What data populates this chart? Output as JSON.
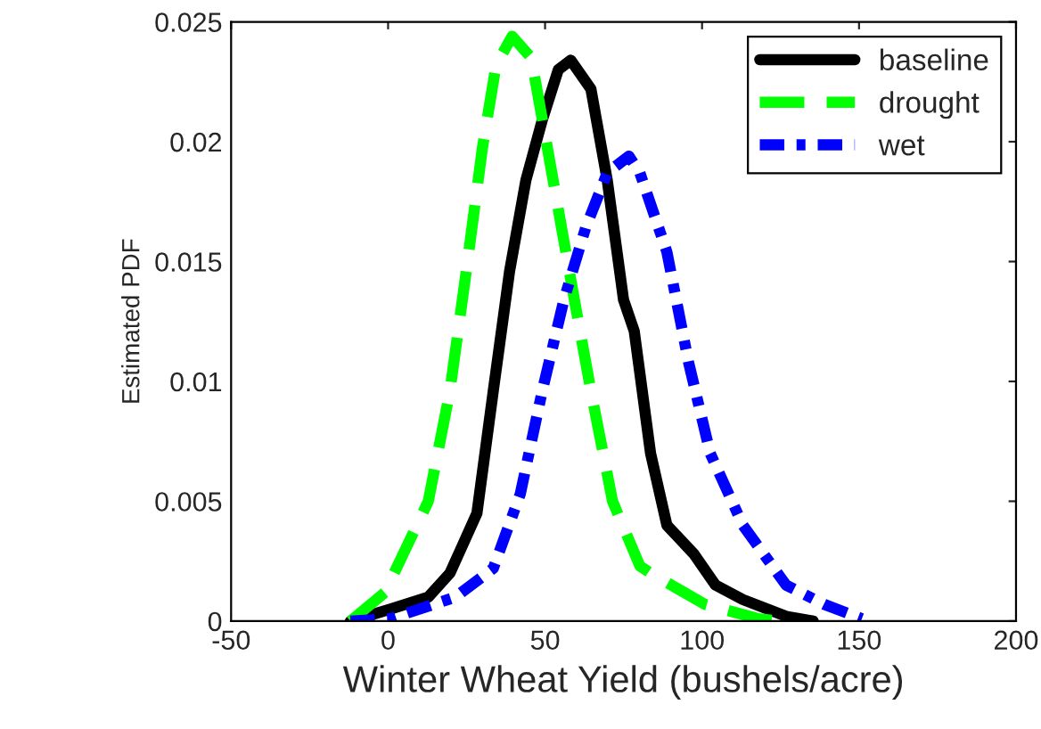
{
  "chart_data": {
    "type": "line",
    "xlabel": "Winter Wheat Yield (bushels/acre)",
    "ylabel": "Estimated PDF",
    "xlim": [
      -50,
      200
    ],
    "xticks": [
      -50,
      0,
      50,
      100,
      150,
      200
    ],
    "ylim": [
      0,
      0.025
    ],
    "yticks": [
      0,
      0.005,
      0.01,
      0.015,
      0.02,
      0.025
    ],
    "grid": false,
    "legend": "top right",
    "series": [
      {
        "name": "baseline",
        "color": "#000000",
        "line_style": "solid",
        "x": [
          -12,
          0.7,
          12.8,
          19.7,
          28.3,
          33.5,
          38.7,
          43.9,
          49.1,
          54.2,
          58.2,
          64.6,
          69.8,
          75,
          78.4,
          83.6,
          88.8,
          97.4,
          104.3,
          113,
          126.8,
          135.4
        ],
        "values": [
          0,
          0.0005,
          0.001,
          0.002,
          0.0045,
          0.0096,
          0.0146,
          0.0184,
          0.0209,
          0.023,
          0.0234,
          0.0222,
          0.0184,
          0.0134,
          0.0121,
          0.007,
          0.004,
          0.0028,
          0.0015,
          0.0009,
          0.0002,
          0
        ]
      },
      {
        "name": "drought",
        "color": "#00ff00",
        "line_style": "dashed",
        "x": [
          -12,
          -1,
          12.8,
          19.7,
          24.9,
          30,
          34.4,
          39.5,
          45.6,
          50.8,
          57.7,
          64.6,
          71.5,
          80.2,
          83.6,
          100.9,
          118,
          125
        ],
        "values": [
          0,
          0.0012,
          0.005,
          0.0096,
          0.0146,
          0.0197,
          0.0232,
          0.0244,
          0.0235,
          0.0197,
          0.0146,
          0.0096,
          0.005,
          0.0023,
          0.002,
          0.0007,
          0.0001,
          0
        ]
      },
      {
        "name": "wet",
        "color": "#0000ff",
        "line_style": "dashdot",
        "x": [
          -12,
          0.7,
          21.4,
          33.5,
          42.1,
          49.1,
          56,
          62.9,
          69.8,
          76.7,
          80.2,
          88.8,
          95.7,
          102.6,
          113,
          126.8,
          138.9,
          150.9
        ],
        "values": [
          0,
          0.0001,
          0.001,
          0.0022,
          0.0053,
          0.0096,
          0.0134,
          0.0164,
          0.0187,
          0.0194,
          0.0187,
          0.0154,
          0.0108,
          0.007,
          0.004,
          0.0015,
          0.0007,
          0.0001
        ]
      }
    ]
  }
}
